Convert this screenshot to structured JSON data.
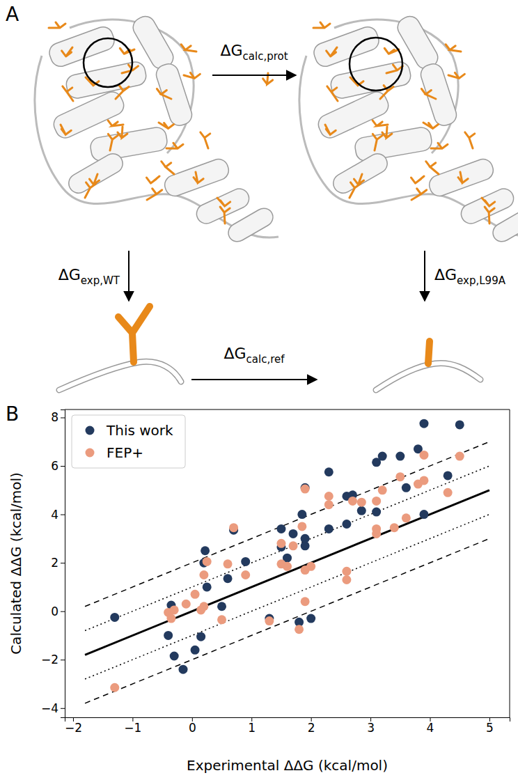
{
  "panel_a": {
    "panel_label": "A",
    "arrows": [
      {
        "main": "ΔG",
        "sub": "calc,prot"
      },
      {
        "main": "ΔG",
        "sub": "exp,WT"
      },
      {
        "main": "ΔG",
        "sub": "exp,L99A"
      },
      {
        "main": "ΔG",
        "sub": "calc,ref"
      }
    ]
  },
  "chart_data": {
    "type": "scatter",
    "panel_label": "B",
    "x_label": "Experimental ΔΔG (kcal/mol)",
    "y_label": "Calculated ΔΔG (kcal/mol)",
    "xlim": [
      -2.14,
      5.34
    ],
    "ylim": [
      -4.38,
      8.33
    ],
    "xticks": [
      {
        "value": -2,
        "label": "−2"
      },
      {
        "value": -1,
        "label": "−1"
      },
      0,
      1,
      2,
      3,
      4,
      5
    ],
    "yticks": [
      {
        "value": -4,
        "label": "−4"
      },
      {
        "value": -2,
        "label": "−2"
      },
      0,
      2,
      4,
      6,
      8
    ],
    "legend": "upper left",
    "grid": false,
    "series": [
      {
        "name": "This work",
        "type": "scatter",
        "marker": "circle",
        "color": "#233a5e",
        "x": [
          -1.3,
          -0.4,
          -0.35,
          -0.3,
          -0.15,
          0.05,
          0.15,
          0.2,
          0.22,
          0.25,
          0.7,
          0.9,
          0.5,
          0.6,
          1.3,
          1.5,
          1.5,
          1.6,
          1.7,
          1.8,
          1.85,
          1.9,
          1.9,
          1.9,
          2.0,
          2.3,
          2.3,
          2.6,
          2.6,
          2.7,
          2.85,
          3.1,
          3.1,
          3.2,
          3.5,
          3.6,
          3.8,
          3.9,
          3.9,
          4.3,
          4.5
        ],
        "values": [
          -0.25,
          -1.0,
          0.25,
          -1.85,
          -2.4,
          -1.6,
          -1.05,
          2.0,
          2.5,
          1.0,
          3.35,
          2.05,
          0.2,
          1.35,
          -0.3,
          3.4,
          2.65,
          2.2,
          3.2,
          -0.45,
          4.0,
          2.7,
          3.0,
          5.1,
          -0.3,
          5.75,
          3.4,
          4.75,
          3.6,
          4.8,
          4.15,
          6.15,
          4.1,
          6.4,
          6.4,
          5.1,
          6.7,
          7.75,
          4.0,
          5.6,
          7.7
        ]
      },
      {
        "name": "FEP+",
        "type": "scatter",
        "marker": "circle",
        "color": "#eb9b7e",
        "x": [
          -1.3,
          -0.4,
          -0.35,
          -0.3,
          -0.1,
          0.05,
          0.15,
          0.2,
          0.2,
          0.25,
          0.5,
          0.6,
          0.7,
          0.9,
          1.3,
          1.5,
          1.5,
          1.6,
          1.7,
          1.8,
          1.85,
          1.9,
          1.9,
          1.9,
          2.0,
          2.3,
          2.3,
          2.6,
          2.6,
          2.7,
          2.85,
          3.1,
          3.1,
          3.1,
          3.2,
          3.4,
          3.5,
          3.6,
          3.8,
          3.9,
          3.9,
          4.3,
          4.5
        ],
        "values": [
          -3.15,
          -0.05,
          -0.3,
          0.05,
          0.3,
          0.7,
          0.05,
          0.2,
          1.5,
          2.05,
          -0.35,
          1.95,
          3.45,
          1.5,
          -0.4,
          1.95,
          2.8,
          1.85,
          2.7,
          -0.75,
          3.5,
          5.05,
          1.7,
          0.4,
          1.85,
          4.4,
          4.75,
          1.65,
          1.3,
          4.55,
          4.5,
          4.55,
          3.4,
          3.2,
          5.0,
          3.45,
          5.55,
          3.85,
          5.25,
          5.4,
          6.45,
          4.9,
          6.4
        ]
      },
      {
        "type": "line",
        "line_style": "solid",
        "color": "#000000",
        "x": [
          -1.8,
          5
        ],
        "values": [
          -1.8,
          5
        ]
      },
      {
        "type": "line",
        "line_style": "dotted",
        "color": "#000000",
        "x": [
          -1.8,
          5
        ],
        "values": [
          -0.8,
          6
        ]
      },
      {
        "type": "line",
        "line_style": "dotted",
        "color": "#000000",
        "x": [
          -1.8,
          5
        ],
        "values": [
          -2.8,
          4
        ]
      },
      {
        "type": "line",
        "line_style": "dashed",
        "color": "#000000",
        "x": [
          -1.8,
          5
        ],
        "values": [
          0.2,
          7
        ]
      },
      {
        "type": "line",
        "line_style": "dashed",
        "color": "#000000",
        "x": [
          -1.8,
          5
        ],
        "values": [
          -3.8,
          3
        ]
      }
    ]
  }
}
